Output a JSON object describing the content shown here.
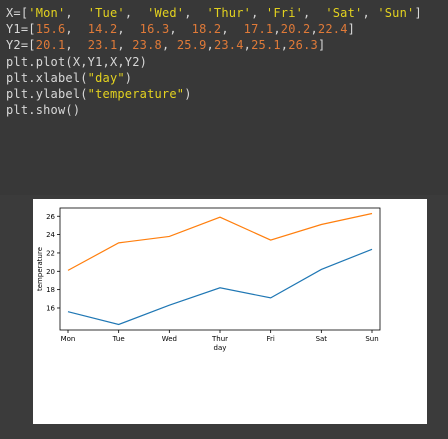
{
  "code": {
    "lines": [
      [
        [
          "id",
          "X=["
        ],
        [
          "str",
          "'Mon'"
        ],
        [
          "punc",
          ",  "
        ],
        [
          "str",
          "'Tue'"
        ],
        [
          "punc",
          ",  "
        ],
        [
          "str",
          "'Wed'"
        ],
        [
          "punc",
          ",  "
        ],
        [
          "str",
          "'Thur'"
        ],
        [
          "punc",
          ", "
        ],
        [
          "str",
          "'Fri'"
        ],
        [
          "punc",
          ",  "
        ],
        [
          "str",
          "'Sat'"
        ],
        [
          "punc",
          ", "
        ],
        [
          "str",
          "'Sun'"
        ],
        [
          "punc",
          "]"
        ]
      ],
      [
        [
          "id",
          "Y1=["
        ],
        [
          "num",
          "15.6"
        ],
        [
          "punc",
          ",  "
        ],
        [
          "num",
          "14.2"
        ],
        [
          "punc",
          ",  "
        ],
        [
          "num",
          "16.3"
        ],
        [
          "punc",
          ",  "
        ],
        [
          "num",
          "18.2"
        ],
        [
          "punc",
          ",  "
        ],
        [
          "num",
          "17.1"
        ],
        [
          "punc",
          ","
        ],
        [
          "num",
          "20.2"
        ],
        [
          "punc",
          ","
        ],
        [
          "num",
          "22.4"
        ],
        [
          "punc",
          "]"
        ]
      ],
      [
        [
          "id",
          "Y2=["
        ],
        [
          "num",
          "20.1"
        ],
        [
          "punc",
          ",  "
        ],
        [
          "num",
          "23.1"
        ],
        [
          "punc",
          ", "
        ],
        [
          "num",
          "23.8"
        ],
        [
          "punc",
          ", "
        ],
        [
          "num",
          "25.9"
        ],
        [
          "punc",
          ","
        ],
        [
          "num",
          "23.4"
        ],
        [
          "punc",
          ","
        ],
        [
          "num",
          "25.1"
        ],
        [
          "punc",
          ","
        ],
        [
          "num",
          "26.3"
        ],
        [
          "punc",
          "]"
        ]
      ],
      [
        [
          "id",
          "plt.plot(X,Y1,X,Y2)"
        ]
      ],
      [
        [
          "id",
          "plt.xlabel("
        ],
        [
          "str",
          "\"day\""
        ],
        [
          "id",
          ")"
        ]
      ],
      [
        [
          "id",
          "plt.ylabel("
        ],
        [
          "str",
          "\"temperature\""
        ],
        [
          "id",
          ")"
        ]
      ],
      [
        [
          "id",
          "plt.show()"
        ]
      ]
    ],
    "colors": {
      "id": "#d8d8d8",
      "num": "#e07a38",
      "str": "#e3d21f",
      "punc": "#d8d8d8"
    }
  },
  "chart_data": {
    "type": "line",
    "categories": [
      "Mon",
      "Tue",
      "Wed",
      "Thur",
      "Fri",
      "Sat",
      "Sun"
    ],
    "series": [
      {
        "values": [
          15.6,
          14.2,
          16.3,
          18.2,
          17.1,
          20.2,
          22.4
        ],
        "color": "#1f77b4"
      },
      {
        "values": [
          20.1,
          23.1,
          23.8,
          25.9,
          23.4,
          25.1,
          26.3
        ],
        "color": "#ff7f0e"
      }
    ],
    "xlabel": "day",
    "ylabel": "temperature",
    "yticks": [
      16,
      18,
      20,
      22,
      24,
      26
    ],
    "ylim": [
      13.6,
      26.9
    ],
    "grid": false
  }
}
